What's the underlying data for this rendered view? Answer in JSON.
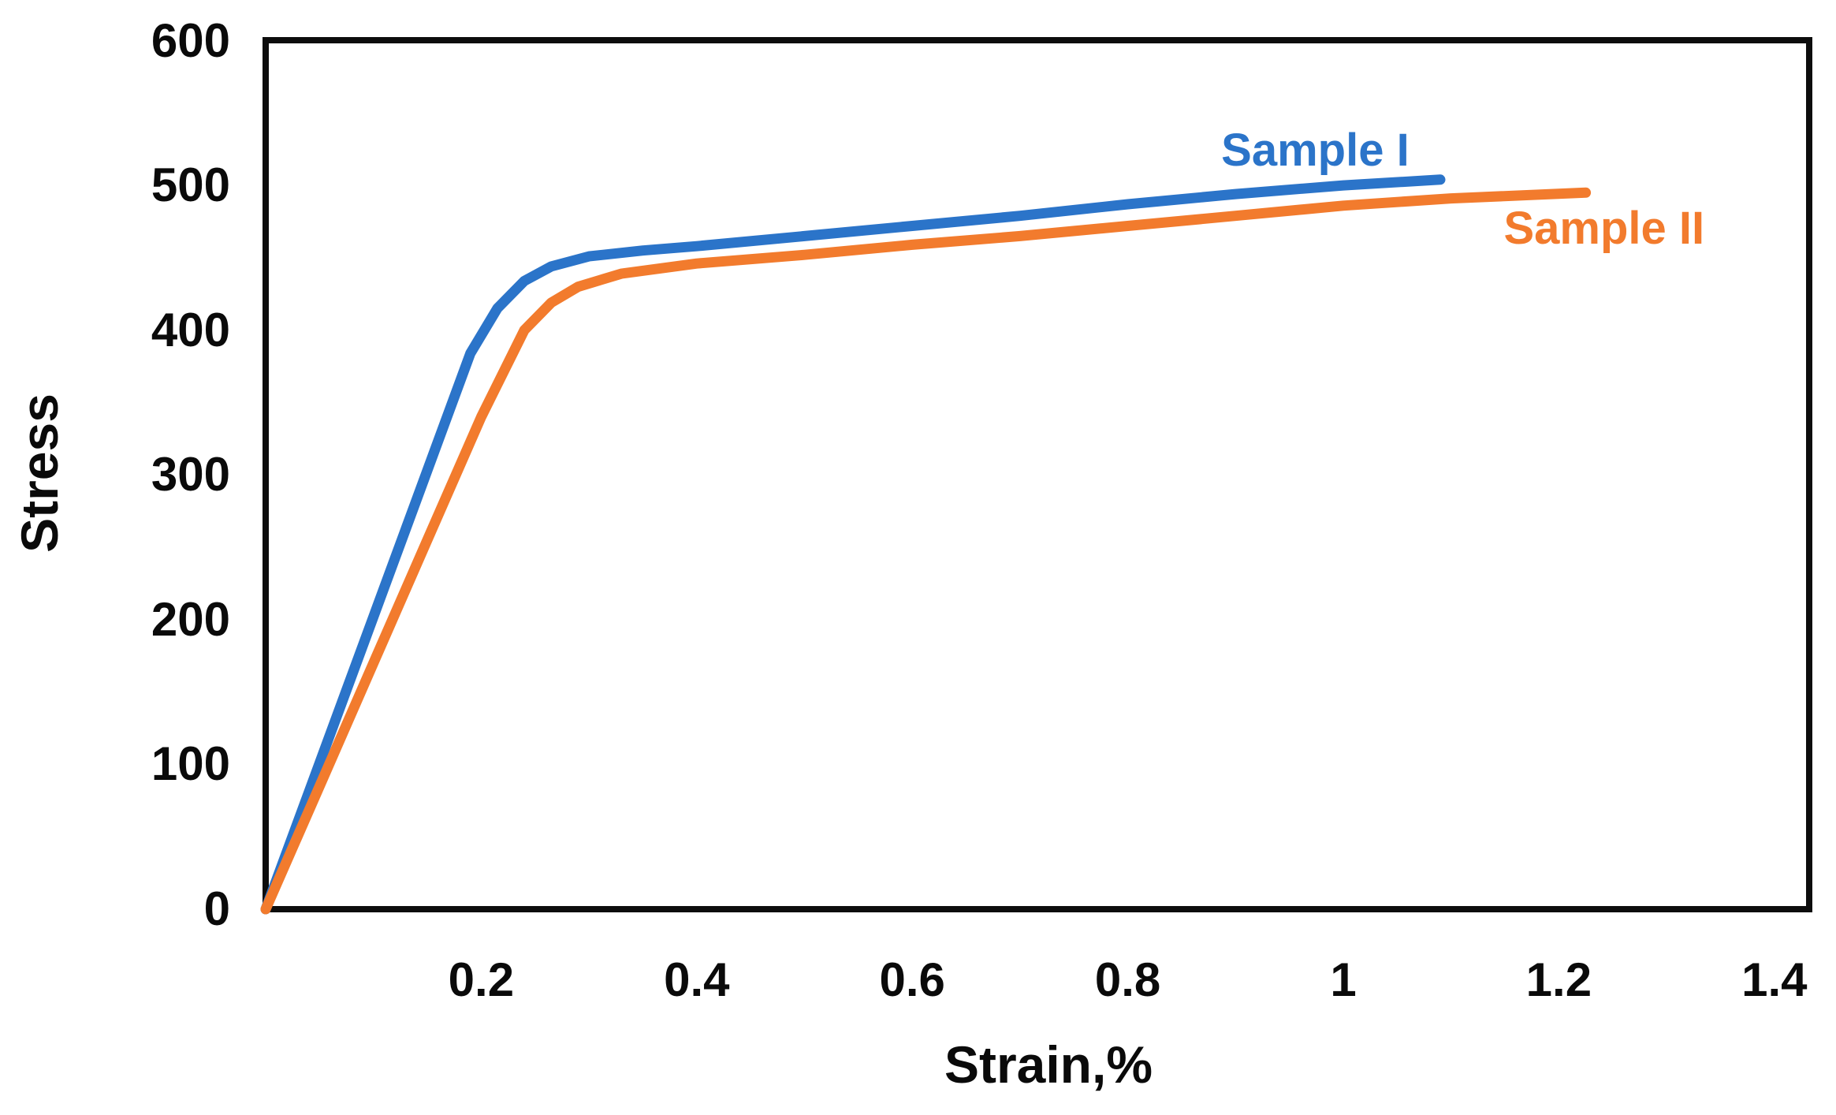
{
  "chart_data": {
    "type": "line",
    "title": "",
    "xlabel": "Strain,%",
    "ylabel": "Stress",
    "xlim": [
      0,
      1.435
    ],
    "ylim": [
      0,
      601
    ],
    "x_ticks": [
      0.2,
      0.4,
      0.6,
      0.8,
      1,
      1.2,
      1.4
    ],
    "x_tick_labels": [
      "0.2",
      "0.4",
      "0.6",
      "0.8",
      "1",
      "1.2",
      "1.4"
    ],
    "y_ticks": [
      0,
      100,
      200,
      300,
      400,
      500,
      600
    ],
    "y_tick_labels": [
      "0",
      "100",
      "200",
      "300",
      "400",
      "500",
      "600"
    ],
    "grid": false,
    "plot_border_color": "#0d0d0d",
    "background_color": "#ffffff",
    "legend_position": "inline-annotations",
    "series": [
      {
        "name": "Sample I",
        "color": "#2B74C9",
        "points": [
          [
            0,
            0
          ],
          [
            0.05,
            101
          ],
          [
            0.1,
            202
          ],
          [
            0.15,
            303
          ],
          [
            0.19,
            384
          ],
          [
            0.215,
            415
          ],
          [
            0.24,
            434
          ],
          [
            0.265,
            444
          ],
          [
            0.3,
            451
          ],
          [
            0.35,
            455
          ],
          [
            0.4,
            458
          ],
          [
            0.5,
            465
          ],
          [
            0.6,
            472
          ],
          [
            0.7,
            479
          ],
          [
            0.8,
            487
          ],
          [
            0.9,
            494
          ],
          [
            1.0,
            500
          ],
          [
            1.09,
            504
          ]
        ]
      },
      {
        "name": "Sample II",
        "color": "#F27B2D",
        "points": [
          [
            0,
            0
          ],
          [
            0.05,
            85
          ],
          [
            0.1,
            170
          ],
          [
            0.15,
            255
          ],
          [
            0.2,
            340
          ],
          [
            0.24,
            400
          ],
          [
            0.265,
            419
          ],
          [
            0.29,
            430
          ],
          [
            0.33,
            439
          ],
          [
            0.4,
            446
          ],
          [
            0.5,
            452
          ],
          [
            0.6,
            459
          ],
          [
            0.7,
            465
          ],
          [
            0.8,
            472
          ],
          [
            0.9,
            479
          ],
          [
            1.0,
            486
          ],
          [
            1.1,
            491
          ],
          [
            1.225,
            495
          ]
        ]
      }
    ],
    "annotations": [
      {
        "text": "Sample I",
        "color": "#2B74C9",
        "x": 0.974,
        "y": 524
      },
      {
        "text": "Sample II",
        "color": "#F27B2D",
        "x": 1.242,
        "y": 470
      }
    ]
  }
}
